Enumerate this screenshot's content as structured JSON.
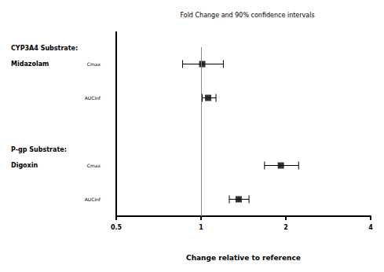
{
  "chart_data": {
    "type": "forest",
    "title": "Fold Change and 90% confidence intervals",
    "x_label": "Change relative to reference",
    "log": "x",
    "xlim": [
      0.5,
      4
    ],
    "xticks": [
      0.5,
      1,
      2,
      4
    ],
    "reference": 1,
    "categories": [
      "Cmax",
      "AUCinf",
      null,
      "Cmax",
      "AUCinf"
    ],
    "groups": [
      {
        "lines": [
          "CYP3A4 Substrate:",
          "Midazolam"
        ],
        "row": 0
      },
      {
        "lines": [
          "P-gp Substrate:",
          "Digoxin"
        ],
        "row": 3
      }
    ],
    "values": [
      1.01,
      1.06,
      null,
      1.92,
      1.36
    ],
    "ci_low": [
      0.86,
      1.01,
      null,
      1.68,
      1.26
    ],
    "ci_high": [
      1.2,
      1.13,
      null,
      2.22,
      1.48
    ],
    "color": "#000000",
    "marker": "square"
  }
}
